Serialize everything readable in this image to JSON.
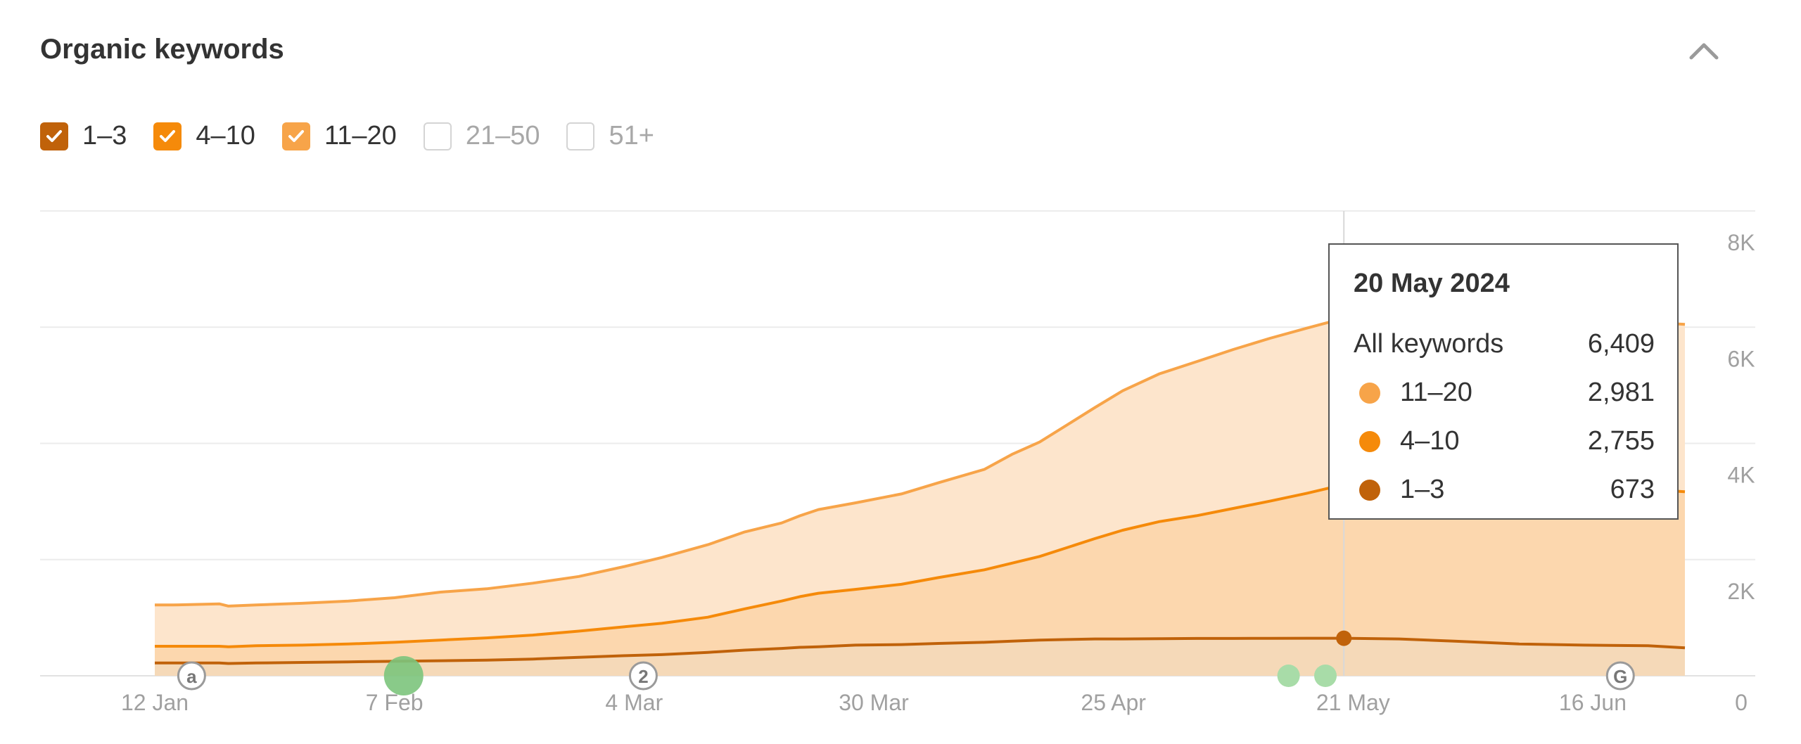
{
  "header": {
    "title": "Organic keywords",
    "collapse_icon": "chevron-up-icon"
  },
  "legend": [
    {
      "label": "1–3",
      "checked": true,
      "color": "#c0620a"
    },
    {
      "label": "4–10",
      "checked": true,
      "color": "#f58a0a"
    },
    {
      "label": "11–20",
      "checked": true,
      "color": "#f7a449"
    },
    {
      "label": "21–50",
      "checked": false,
      "color": "#d4d4d4"
    },
    {
      "label": "51+",
      "checked": false,
      "color": "#d4d4d4"
    }
  ],
  "tooltip": {
    "date": "20 May 2024",
    "total_label": "All keywords",
    "total_value": "6,409",
    "rows": [
      {
        "label": "11–20",
        "value": "2,981",
        "color": "#f7a449"
      },
      {
        "label": "4–10",
        "value": "2,755",
        "color": "#f58a0a"
      },
      {
        "label": "1–3",
        "value": "673",
        "color": "#c0620a"
      }
    ]
  },
  "chart_data": {
    "type": "area",
    "stacked": true,
    "x": [
      "2024-01-12",
      "2024-01-14",
      "2024-01-19",
      "2024-01-20",
      "2024-01-23",
      "2024-01-28",
      "2024-02-02",
      "2024-02-07",
      "2024-02-12",
      "2024-02-17",
      "2024-02-22",
      "2024-02-27",
      "2024-03-03",
      "2024-03-07",
      "2024-03-12",
      "2024-03-16",
      "2024-03-20",
      "2024-03-22",
      "2024-03-24",
      "2024-03-28",
      "2024-04-02",
      "2024-04-06",
      "2024-04-11",
      "2024-04-14",
      "2024-04-17",
      "2024-04-20",
      "2024-04-23",
      "2024-04-26",
      "2024-04-30",
      "2024-05-04",
      "2024-05-08",
      "2024-05-12",
      "2024-05-16",
      "2024-05-20",
      "2024-05-26",
      "2024-06-01",
      "2024-06-08",
      "2024-06-15",
      "2024-06-22",
      "2024-06-26"
    ],
    "series": [
      {
        "name": "1–3",
        "color": "#c0620a",
        "values": [
          230,
          230,
          230,
          220,
          230,
          240,
          250,
          260,
          270,
          280,
          300,
          330,
          360,
          380,
          420,
          460,
          490,
          510,
          520,
          550,
          560,
          580,
          600,
          620,
          640,
          650,
          660,
          660,
          665,
          670,
          670,
          672,
          673,
          673,
          660,
          620,
          570,
          550,
          540,
          500
        ]
      },
      {
        "name": "4–10",
        "color": "#f58a0a",
        "values": [
          300,
          300,
          300,
          300,
          310,
          310,
          320,
          340,
          370,
          400,
          430,
          470,
          520,
          560,
          630,
          740,
          850,
          910,
          960,
          1000,
          1080,
          1180,
          1300,
          1400,
          1500,
          1650,
          1800,
          1950,
          2100,
          2200,
          2330,
          2460,
          2600,
          2755,
          2800,
          2800,
          2800,
          2800,
          2800,
          2800
        ]
      },
      {
        "name": "11–20",
        "color": "#f7a449",
        "values": [
          740,
          740,
          760,
          730,
          730,
          750,
          770,
          800,
          860,
          880,
          930,
          980,
          1080,
          1180,
          1300,
          1380,
          1400,
          1450,
          1500,
          1550,
          1620,
          1700,
          1800,
          1950,
          2050,
          2200,
          2350,
          2500,
          2650,
          2760,
          2850,
          2920,
          2960,
          2981,
          3000,
          3000,
          3000,
          3000,
          3000,
          3000
        ]
      }
    ],
    "x_ticks": [
      "12 Jan",
      "7 Feb",
      "4 Mar",
      "30 Mar",
      "25 Apr",
      "21 May",
      "16 Jun"
    ],
    "y_ticks": [
      "0",
      "2K",
      "4K",
      "6K",
      "8K"
    ],
    "ylim": [
      0,
      8000
    ],
    "grid": true,
    "hover_date": "2024-05-20",
    "annotations": [
      {
        "date": "2024-01-16",
        "label": "a",
        "kind": "marker"
      },
      {
        "date": "2024-02-08",
        "label": "",
        "kind": "event-large"
      },
      {
        "date": "2024-03-05",
        "label": "2",
        "kind": "marker"
      },
      {
        "date": "2024-05-14",
        "label": "",
        "kind": "event"
      },
      {
        "date": "2024-05-18",
        "label": "",
        "kind": "event"
      },
      {
        "date": "2024-06-19",
        "label": "G",
        "kind": "marker"
      }
    ]
  }
}
